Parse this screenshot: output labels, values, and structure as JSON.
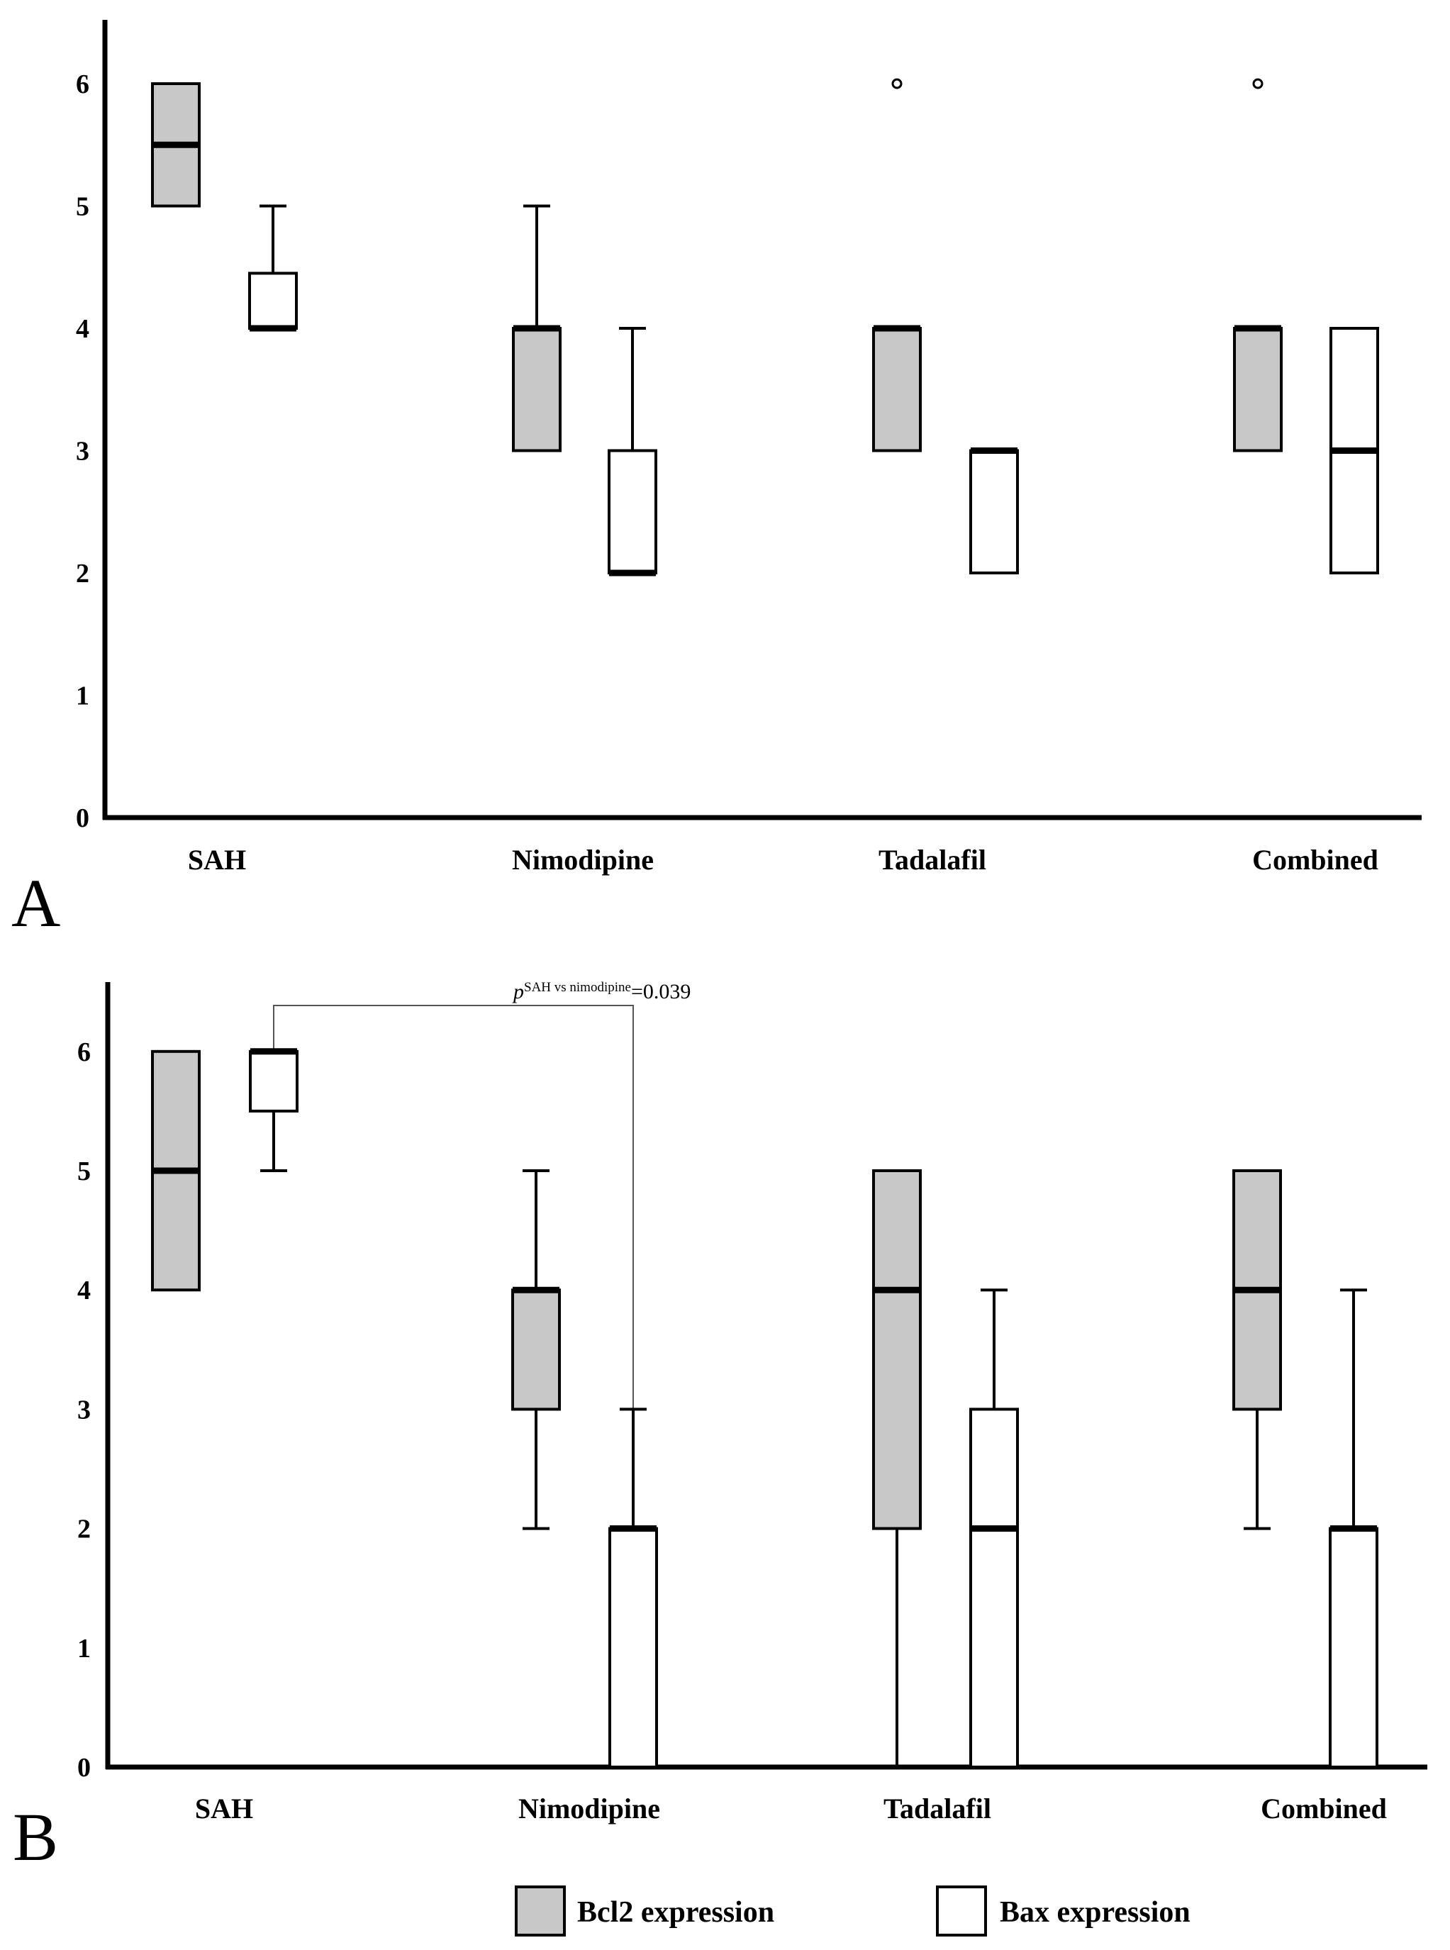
{
  "chart_data": [
    {
      "type": "boxplot",
      "panel_label": "A",
      "categories": [
        "SAH",
        "Nimodipine",
        "Tadalafil",
        "Combined"
      ],
      "ylim": [
        0,
        6.5
      ],
      "yticks": [
        "0",
        "1",
        "2",
        "3",
        "4",
        "5",
        "6"
      ],
      "series": [
        {
          "name": "Bcl2 expression",
          "fill": "#c8c8c8",
          "boxes": [
            {
              "category": "SAH",
              "whisker_low": 5,
              "q1": 5,
              "median": 5.5,
              "q3": 6,
              "whisker_high": 6,
              "outliers": []
            },
            {
              "category": "Nimodipine",
              "whisker_low": 3,
              "q1": 3,
              "median": 4,
              "q3": 4,
              "whisker_high": 5,
              "outliers": []
            },
            {
              "category": "Tadalafil",
              "whisker_low": 3,
              "q1": 3,
              "median": 4,
              "q3": 4,
              "whisker_high": 4,
              "outliers": [
                6
              ]
            },
            {
              "category": "Combined",
              "whisker_low": 3,
              "q1": 3,
              "median": 4,
              "q3": 4,
              "whisker_high": 4,
              "outliers": [
                6
              ]
            }
          ]
        },
        {
          "name": "Bax expression",
          "fill": "#ffffff",
          "boxes": [
            {
              "category": "SAH",
              "whisker_low": 4,
              "q1": 4,
              "median": 4,
              "q3": 4.45,
              "whisker_high": 5,
              "outliers": []
            },
            {
              "category": "Nimodipine",
              "whisker_low": 2,
              "q1": 2,
              "median": 2,
              "q3": 3,
              "whisker_high": 4,
              "outliers": []
            },
            {
              "category": "Tadalafil",
              "whisker_low": 2,
              "q1": 2,
              "median": 3,
              "q3": 3,
              "whisker_high": 3,
              "outliers": []
            },
            {
              "category": "Combined",
              "whisker_low": 2,
              "q1": 2,
              "median": 3,
              "q3": 4,
              "whisker_high": 4,
              "outliers": []
            }
          ]
        }
      ]
    },
    {
      "type": "boxplot",
      "panel_label": "B",
      "categories": [
        "SAH",
        "Nimodipine",
        "Tadalafil",
        "Combined"
      ],
      "ylim": [
        0,
        6.5
      ],
      "yticks": [
        "0",
        "1",
        "2",
        "3",
        "4",
        "5",
        "6"
      ],
      "annotation": {
        "prefix": "p",
        "superscript": "SAH vs nimodipine",
        "suffix": "=0.039",
        "from_category": "SAH",
        "to_category": "Nimodipine",
        "series": "Bax expression"
      },
      "series": [
        {
          "name": "Bcl2 expression",
          "fill": "#c8c8c8",
          "boxes": [
            {
              "category": "SAH",
              "whisker_low": 4,
              "q1": 4,
              "median": 5,
              "q3": 6,
              "whisker_high": 6,
              "outliers": []
            },
            {
              "category": "Nimodipine",
              "whisker_low": 2,
              "q1": 3,
              "median": 4,
              "q3": 4,
              "whisker_high": 5,
              "outliers": []
            },
            {
              "category": "Tadalafil",
              "whisker_low": 0,
              "q1": 2,
              "median": 4,
              "q3": 5,
              "whisker_high": 5,
              "outliers": []
            },
            {
              "category": "Combined",
              "whisker_low": 2,
              "q1": 3,
              "median": 4,
              "q3": 5,
              "whisker_high": 5,
              "outliers": []
            }
          ]
        },
        {
          "name": "Bax expression",
          "fill": "#ffffff",
          "boxes": [
            {
              "category": "SAH",
              "whisker_low": 5,
              "q1": 5.5,
              "median": 6,
              "q3": 6,
              "whisker_high": 6,
              "outliers": []
            },
            {
              "category": "Nimodipine",
              "whisker_low": 0,
              "q1": 0,
              "median": 2,
              "q3": 2,
              "whisker_high": 3,
              "outliers": []
            },
            {
              "category": "Tadalafil",
              "whisker_low": 0,
              "q1": 0,
              "median": 2,
              "q3": 3,
              "whisker_high": 4,
              "outliers": []
            },
            {
              "category": "Combined",
              "whisker_low": 0,
              "q1": 0,
              "median": 2,
              "q3": 2,
              "whisker_high": 4,
              "outliers": []
            }
          ]
        }
      ]
    }
  ],
  "legend": {
    "items": [
      {
        "label": "Bcl2 expression",
        "fill": "#c8c8c8"
      },
      {
        "label": "Bax expression",
        "fill": "#ffffff"
      }
    ]
  }
}
